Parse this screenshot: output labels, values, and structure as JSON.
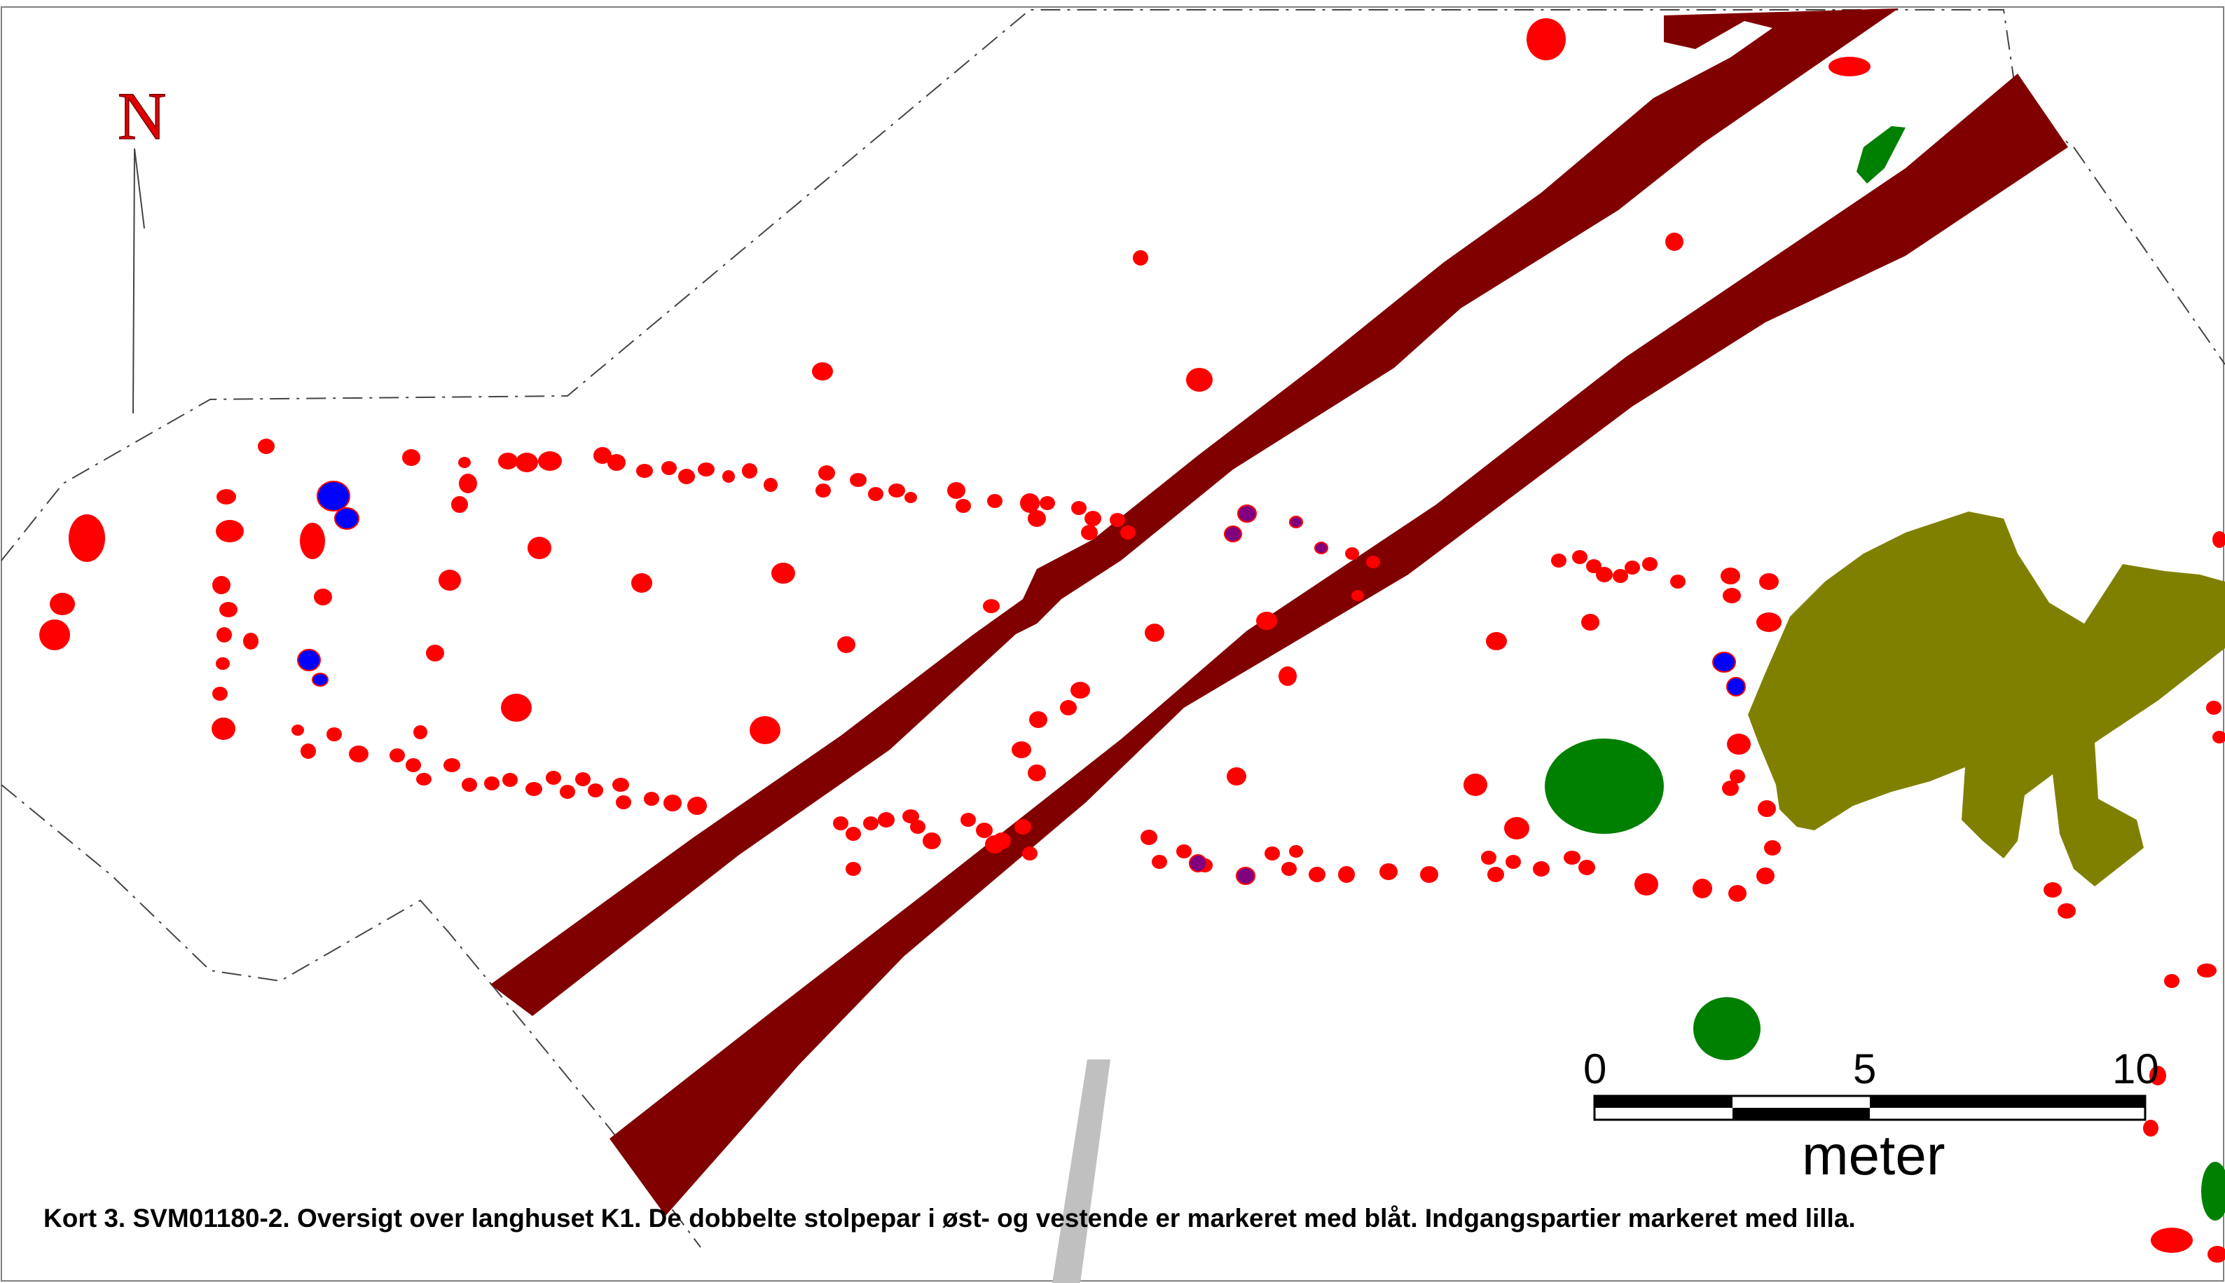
{
  "north_arrow": {
    "letter": "N"
  },
  "scale_bar": {
    "labels": [
      "0",
      "5",
      "10"
    ],
    "unit": "meter"
  },
  "caption": "Kort 3. SVM01180-2. Oversigt over langhuset K1. De dobbelte stolpepar i øst- og vestende er markeret med blåt. Indgangspartier markeret med lilla.",
  "colors": {
    "postholes": "#ff0000",
    "double_post_pairs": "#0000ff",
    "entrance_posts": "#800080",
    "ditch_strips": "#800000",
    "large_pit": "#808000",
    "green_features": "#008000",
    "grey_strip": "#c0c0c0",
    "excavation_boundary": "#000000"
  }
}
